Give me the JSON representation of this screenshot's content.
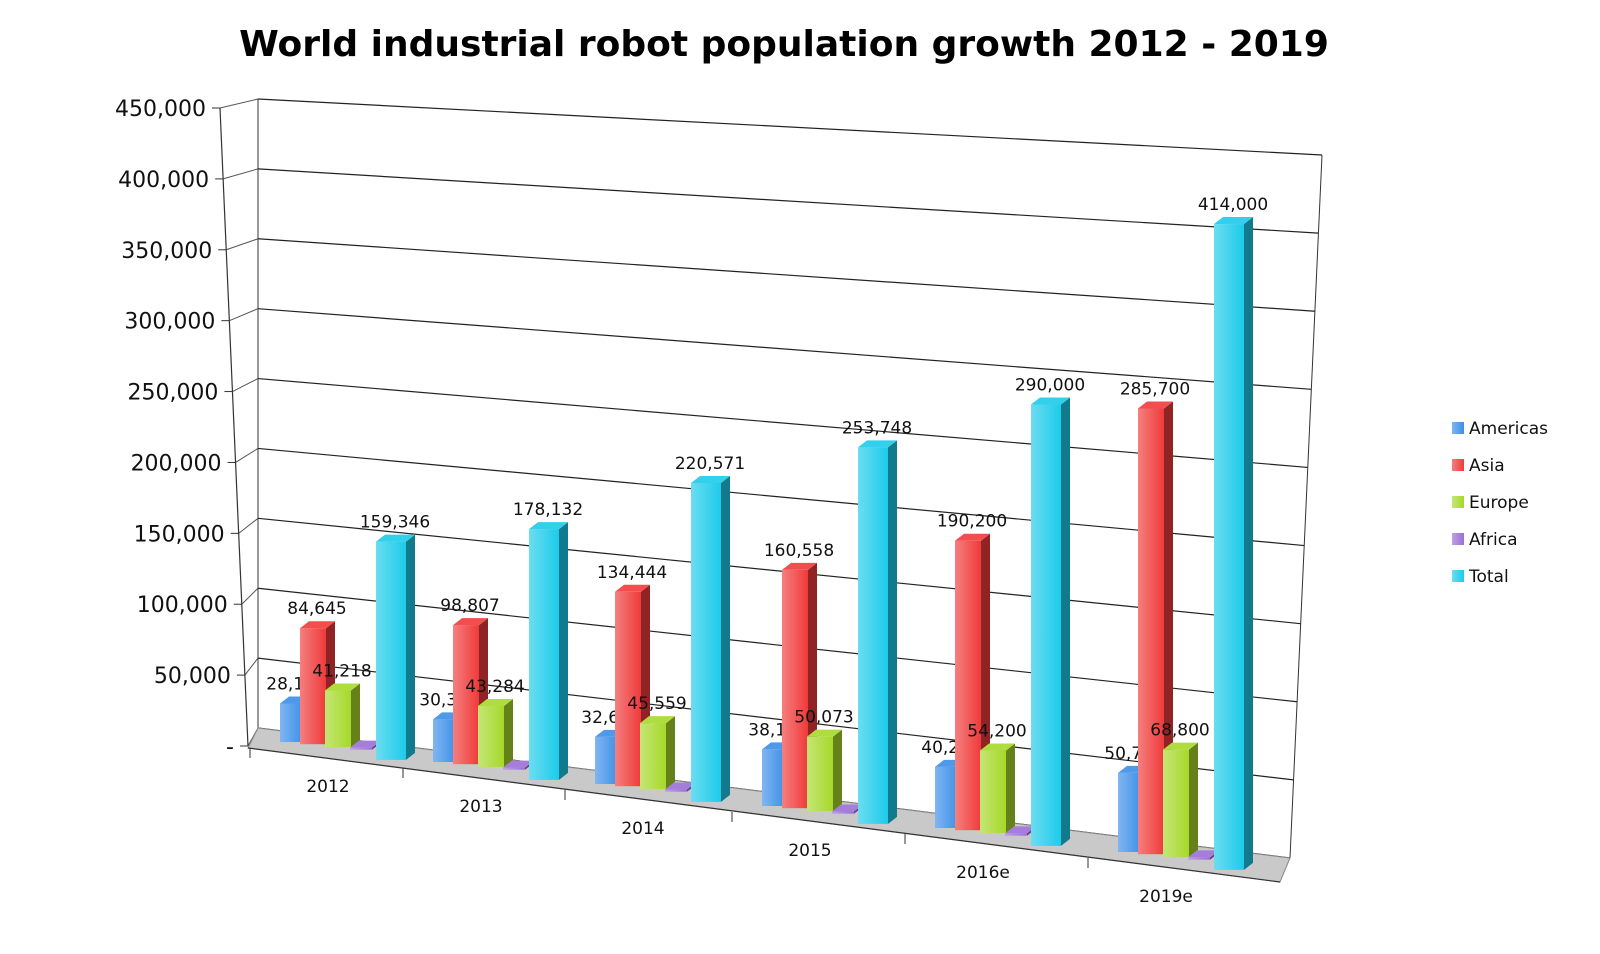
{
  "chart_data": {
    "type": "bar",
    "style": "3d-clustered-column",
    "title": "World industrial robot population growth 2012 - 2019",
    "xlabel": "",
    "ylabel": "",
    "ylim": [
      0,
      450000
    ],
    "yticks": [
      0,
      50000,
      100000,
      150000,
      200000,
      250000,
      300000,
      350000,
      400000,
      450000
    ],
    "ytick_labels": [
      "-",
      "50,000",
      "100,000",
      "150,000",
      "200,000",
      "250,000",
      "300,000",
      "350,000",
      "400,000",
      "450,000"
    ],
    "grid": true,
    "legend_position": "right",
    "categories": [
      "2012",
      "2013",
      "2014",
      "2015",
      "2016e",
      "2019e"
    ],
    "series": [
      {
        "name": "Americas",
        "color": "#3b8ee8",
        "values": [
          28137,
          30317,
          32616,
          38134,
          40200,
          50700
        ],
        "labels": [
          "28,137",
          "30,317",
          "32,616",
          "38,134",
          "40,200",
          "50,700"
        ]
      },
      {
        "name": "Asia",
        "color": "#f03a3a",
        "values": [
          84645,
          98807,
          134444,
          160558,
          190200,
          285700
        ],
        "labels": [
          "84,645",
          "98,807",
          "134,444",
          "160,558",
          "190,200",
          "285,700"
        ]
      },
      {
        "name": "Europe",
        "color": "#a6d82a",
        "values": [
          41218,
          43284,
          45559,
          50073,
          54200,
          68800
        ],
        "labels": [
          "41,218",
          "43,284",
          "45,559",
          "50,073",
          "54,200",
          "68,800"
        ]
      },
      {
        "name": "Africa",
        "color": "#9b6fd6",
        "values": [
          1500,
          1500,
          1500,
          1500,
          1500,
          1500
        ],
        "labels": [
          "",
          "",
          "",
          "",
          "",
          ""
        ]
      },
      {
        "name": "Total",
        "color": "#1ccbea",
        "values": [
          159346,
          178132,
          220571,
          253748,
          290000,
          414000
        ],
        "labels": [
          "159,346",
          "178,132",
          "220,571",
          "253,748",
          "290,000",
          "414,000"
        ]
      }
    ]
  }
}
